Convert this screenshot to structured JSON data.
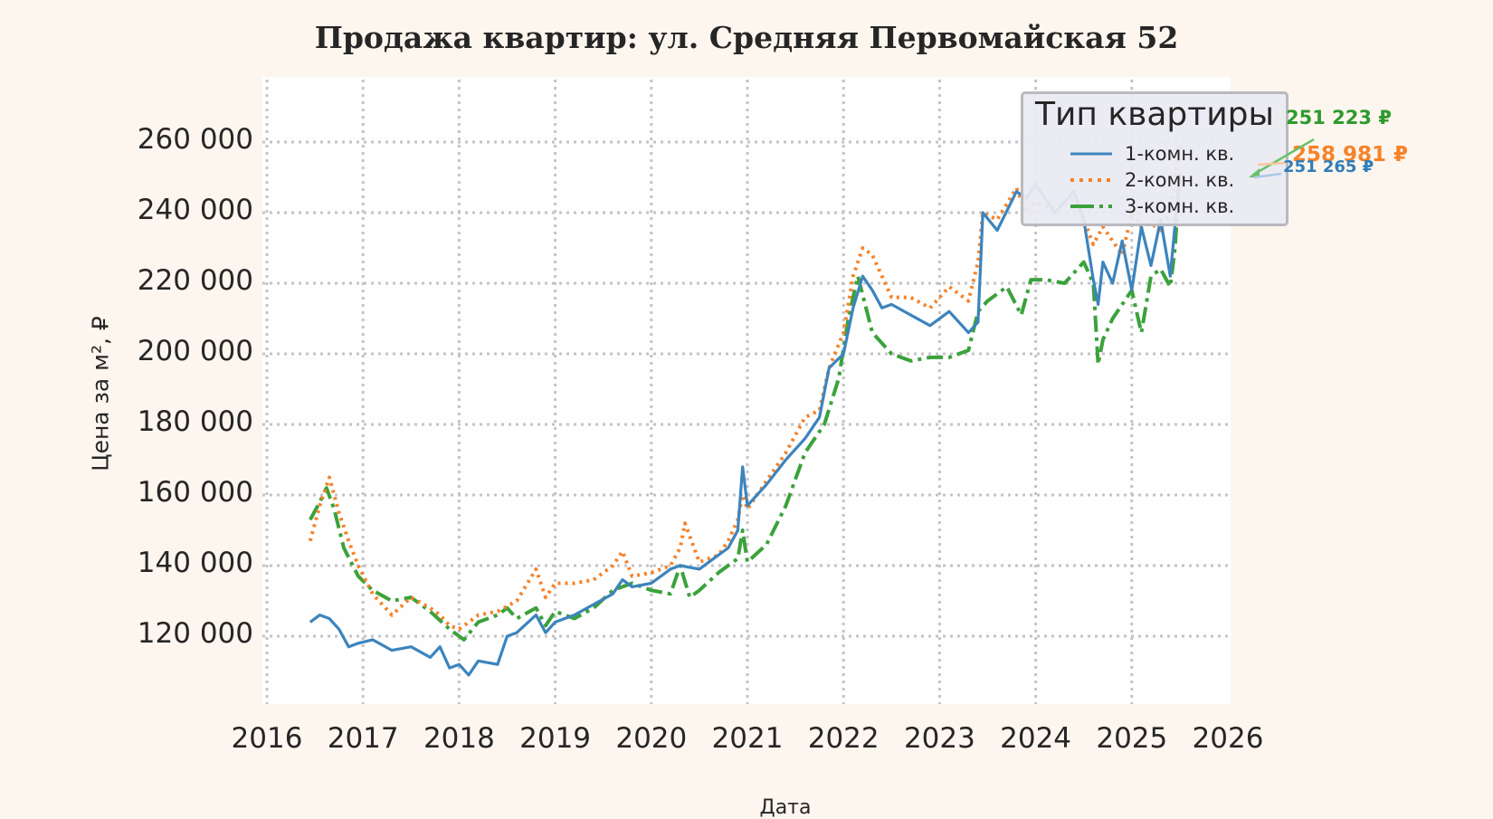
{
  "title": "Продажа квартир: ул. Средняя Первомайская 52",
  "axes": {
    "ylabel": "Цена за м², ₽",
    "xlabel": "Дата",
    "yticks": [
      "260 000",
      "240 000",
      "220 000",
      "200 000",
      "180 000",
      "160 000",
      "140 000",
      "120 000"
    ],
    "xticks": [
      "2016",
      "2017",
      "2018",
      "2019",
      "2020",
      "2021",
      "2022",
      "2023",
      "2024",
      "2025",
      "2026"
    ]
  },
  "legend": {
    "title": "Тип квартиры",
    "items": [
      {
        "label": "1-комн. кв.",
        "color": "#3c84bd",
        "style": "solid"
      },
      {
        "label": "2-комн. кв.",
        "color": "#f5832a",
        "style": "dotted"
      },
      {
        "label": "3-комн. кв.",
        "color": "#3ba23b",
        "style": "dashdot"
      }
    ]
  },
  "annotations": [
    {
      "text": "251 223 ₽",
      "color": "#2e9a2e",
      "series": "3-комн. кв."
    },
    {
      "text": "258 981 ₽",
      "color": "#f5832a",
      "series": "2-комн. кв."
    },
    {
      "text": "251 265 ₽",
      "color": "#2f7db8",
      "series": "1-комн. кв."
    }
  ],
  "chart_data": {
    "type": "line",
    "title": "Продажа квартир: ул. Средняя Первомайская 52",
    "xlabel": "Дата",
    "ylabel": "Цена за м², ₽",
    "xlim": [
      2016,
      2026
    ],
    "ylim": [
      101000,
      279000
    ],
    "grid": true,
    "legend_position": "upper right",
    "legend_title": "Тип квартиры",
    "series": [
      {
        "name": "1-комн. кв.",
        "color": "#3c84bd",
        "x": [
          2016.45,
          2016.55,
          2016.65,
          2016.75,
          2016.85,
          2016.95,
          2017.1,
          2017.3,
          2017.5,
          2017.7,
          2017.8,
          2017.9,
          2018.0,
          2018.1,
          2018.2,
          2018.4,
          2018.5,
          2018.6,
          2018.8,
          2018.9,
          2019.0,
          2019.2,
          2019.4,
          2019.6,
          2019.7,
          2019.8,
          2020.0,
          2020.2,
          2020.3,
          2020.5,
          2020.6,
          2020.8,
          2020.9,
          2020.95,
          2021.0,
          2021.2,
          2021.4,
          2021.6,
          2021.75,
          2021.85,
          2022.0,
          2022.1,
          2022.2,
          2022.3,
          2022.4,
          2022.5,
          2022.7,
          2022.9,
          2023.1,
          2023.3,
          2023.4,
          2023.45,
          2023.6,
          2023.8,
          2023.9,
          2024.0,
          2024.2,
          2024.4,
          2024.5,
          2024.6,
          2024.65,
          2024.7,
          2024.8,
          2024.9,
          2025.0,
          2025.1,
          2025.2,
          2025.3,
          2025.4,
          2025.5
        ],
        "values": [
          124000,
          126000,
          125000,
          122000,
          117000,
          118000,
          119000,
          116000,
          117000,
          114000,
          117000,
          111000,
          112000,
          109000,
          113000,
          112000,
          120000,
          121000,
          126000,
          121000,
          124000,
          126000,
          129000,
          132000,
          136000,
          134000,
          135000,
          139000,
          140000,
          139000,
          141000,
          145000,
          150000,
          168000,
          157000,
          163000,
          170000,
          176000,
          182000,
          196000,
          200000,
          213000,
          222000,
          218000,
          213000,
          214000,
          211000,
          208000,
          212000,
          206000,
          209000,
          240000,
          235000,
          246000,
          244000,
          248000,
          240000,
          246000,
          238000,
          221000,
          214000,
          226000,
          220000,
          232000,
          218000,
          236000,
          225000,
          238000,
          222000,
          251265
        ]
      },
      {
        "name": "2-комн. кв.",
        "color": "#f5832a",
        "x": [
          2016.45,
          2016.55,
          2016.65,
          2016.75,
          2016.85,
          2016.95,
          2017.1,
          2017.3,
          2017.5,
          2017.7,
          2017.8,
          2017.9,
          2018.0,
          2018.2,
          2018.4,
          2018.6,
          2018.8,
          2018.9,
          2019.0,
          2019.2,
          2019.4,
          2019.6,
          2019.7,
          2019.8,
          2020.0,
          2020.2,
          2020.3,
          2020.35,
          2020.5,
          2020.7,
          2020.8,
          2020.9,
          2020.95,
          2021.0,
          2021.2,
          2021.4,
          2021.6,
          2021.75,
          2021.85,
          2022.0,
          2022.1,
          2022.2,
          2022.3,
          2022.4,
          2022.5,
          2022.7,
          2022.9,
          2023.1,
          2023.3,
          2023.4,
          2023.45,
          2023.6,
          2023.8,
          2023.9,
          2024.0,
          2024.2,
          2024.4,
          2024.5,
          2024.6,
          2024.7,
          2024.8,
          2024.9,
          2025.0,
          2025.1,
          2025.2,
          2025.3,
          2025.4,
          2025.5
        ],
        "values": [
          147000,
          157000,
          165000,
          155000,
          147000,
          140000,
          132000,
          126000,
          131000,
          128000,
          126000,
          123000,
          122000,
          126000,
          127000,
          130000,
          139000,
          131000,
          135000,
          135000,
          136000,
          140000,
          144000,
          137000,
          138000,
          140000,
          145000,
          152000,
          141000,
          143000,
          147000,
          153000,
          160000,
          156000,
          164000,
          172000,
          182000,
          184000,
          196000,
          206000,
          222000,
          230000,
          228000,
          222000,
          216000,
          216000,
          213000,
          219000,
          215000,
          226000,
          240000,
          238000,
          247000,
          240000,
          243000,
          241000,
          244000,
          238000,
          231000,
          236000,
          232000,
          228000,
          240000,
          236000,
          237000,
          235000,
          240000,
          258981
        ]
      },
      {
        "name": "3-комн. кв.",
        "color": "#3ba23b",
        "x": [
          2016.45,
          2016.55,
          2016.62,
          2016.7,
          2016.8,
          2016.95,
          2017.1,
          2017.3,
          2017.5,
          2017.7,
          2017.9,
          2018.05,
          2018.2,
          2018.4,
          2018.5,
          2018.6,
          2018.8,
          2018.9,
          2019.0,
          2019.2,
          2019.4,
          2019.6,
          2019.8,
          2020.0,
          2020.2,
          2020.3,
          2020.4,
          2020.5,
          2020.7,
          2020.9,
          2020.95,
          2021.0,
          2021.2,
          2021.4,
          2021.6,
          2021.8,
          2021.95,
          2022.05,
          2022.15,
          2022.3,
          2022.5,
          2022.7,
          2022.9,
          2023.1,
          2023.3,
          2023.4,
          2023.5,
          2023.7,
          2023.85,
          2023.95,
          2024.1,
          2024.3,
          2024.5,
          2024.6,
          2024.65,
          2024.7,
          2024.8,
          2024.9,
          2025.0,
          2025.1,
          2025.2,
          2025.3,
          2025.4,
          2025.45,
          2025.5
        ],
        "values": [
          153000,
          158000,
          162000,
          156000,
          145000,
          137000,
          133000,
          130000,
          131000,
          127000,
          122000,
          119000,
          124000,
          126000,
          128000,
          125000,
          128000,
          123000,
          127000,
          125000,
          128000,
          133000,
          135000,
          133000,
          132000,
          140000,
          131000,
          133000,
          138000,
          142000,
          150000,
          141000,
          146000,
          157000,
          172000,
          180000,
          193000,
          210000,
          222000,
          206000,
          200000,
          198000,
          199000,
          199000,
          201000,
          212000,
          215000,
          219000,
          211000,
          221000,
          221000,
          220000,
          226000,
          220000,
          197000,
          204000,
          210000,
          214000,
          218000,
          206000,
          222000,
          224000,
          219000,
          230000,
          251223
        ]
      }
    ]
  }
}
